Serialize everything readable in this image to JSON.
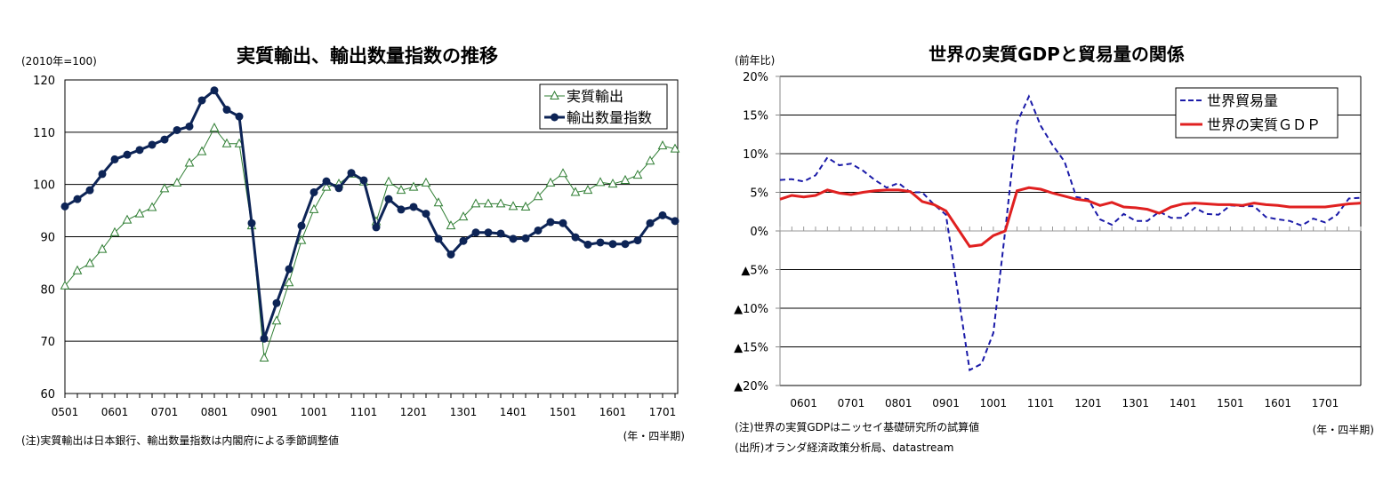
{
  "chart_data": [
    {
      "type": "line",
      "title": "実質輸出、輸出数量指数の推移",
      "unit_label": "(2010年=100)",
      "xlabel": "(年・四半期)",
      "note": "(注)実質輸出は日本銀行、輸出数量指数は内閣府による季節調整値",
      "ylim": [
        60,
        120
      ],
      "yticks": [
        "60",
        "70",
        "80",
        "90",
        "100",
        "110",
        "120"
      ],
      "xtick_labels": [
        "0501",
        "0601",
        "0701",
        "0801",
        "0901",
        "1001",
        "1101",
        "1201",
        "1301",
        "1401",
        "1501",
        "1601",
        "1701"
      ],
      "x_start": "0501",
      "x_end": "1702",
      "frequency": "quarterly",
      "grid": true,
      "legend_position": "top-right",
      "series": [
        {
          "name": "実質輸出",
          "color": "#2e7d32",
          "marker": "open-triangle",
          "values": [
            80.6,
            83.5,
            84.9,
            87.6,
            90.8,
            93.2,
            94.4,
            95.6,
            99.2,
            100.3,
            104.1,
            106.3,
            110.8,
            107.8,
            107.8,
            92.1,
            66.8,
            73.9,
            81.2,
            89.3,
            95.2,
            99.5,
            100.1,
            102.0,
            100.5,
            92.9,
            100.5,
            98.9,
            99.5,
            100.3,
            96.5,
            92.1,
            93.8,
            96.3,
            96.3,
            96.3,
            95.8,
            95.7,
            97.7,
            100.3,
            102.1,
            98.5,
            98.9,
            100.4,
            100.1,
            100.8,
            101.8,
            104.5,
            107.4,
            106.8
          ]
        },
        {
          "name": "輸出数量指数",
          "color": "#0d2456",
          "marker": "filled-circle",
          "values": [
            95.8,
            97.2,
            98.9,
            102.0,
            104.8,
            105.7,
            106.6,
            107.6,
            108.6,
            110.4,
            111.1,
            116.1,
            118.0,
            114.3,
            113.0,
            92.6,
            70.5,
            77.3,
            83.8,
            92.1,
            98.5,
            100.6,
            99.3,
            102.2,
            100.8,
            91.8,
            97.2,
            95.2,
            95.7,
            94.4,
            89.6,
            86.6,
            89.2,
            90.8,
            90.8,
            90.6,
            89.6,
            89.7,
            91.2,
            92.8,
            92.6,
            89.9,
            88.5,
            88.9,
            88.6,
            88.6,
            89.3,
            92.6,
            94.1,
            93.0
          ]
        }
      ]
    },
    {
      "type": "line",
      "title": "世界の実質GDPと貿易量の関係",
      "unit_label": "(前年比)",
      "xlabel": "(年・四半期)",
      "notes": [
        "(注)世界の実質GDPはニッセイ基礎研究所の試算値",
        "(出所)オランダ経済政策分析局、datastream"
      ],
      "ylim": [
        -20,
        20
      ],
      "yticks": [
        "▲20%",
        "▲15%",
        "▲10%",
        "▲5%",
        "0%",
        "5%",
        "10%",
        "15%",
        "20%"
      ],
      "xtick_labels": [
        "0601",
        "0701",
        "0801",
        "0901",
        "1001",
        "1101",
        "1201",
        "1301",
        "1401",
        "1501",
        "1601",
        "1701"
      ],
      "x_start": "0503",
      "x_end": "1704",
      "frequency": "quarterly",
      "grid": true,
      "legend_position": "top-right",
      "series": [
        {
          "name": "世界貿易量",
          "color": "#1a1aa8",
          "style": "dashed",
          "values": [
            6.6,
            6.7,
            6.4,
            7.2,
            9.5,
            8.5,
            8.7,
            7.8,
            6.6,
            5.6,
            6.2,
            5.0,
            5.0,
            3.4,
            2.1,
            -7.9,
            -18.0,
            -17.2,
            -13.2,
            0.0,
            14.0,
            17.4,
            13.6,
            11.1,
            9.0,
            4.4,
            4.1,
            1.5,
            0.8,
            2.2,
            1.3,
            1.3,
            2.5,
            1.7,
            1.7,
            3.0,
            2.2,
            2.1,
            3.3,
            3.2,
            3.2,
            1.8,
            1.5,
            1.3,
            0.7,
            1.6,
            1.1,
            2.1,
            4.2,
            4.3
          ]
        },
        {
          "name": "世界の実質ＧＤＰ",
          "color": "#e02020",
          "style": "solid",
          "values": [
            4.1,
            4.6,
            4.4,
            4.6,
            5.3,
            4.9,
            4.7,
            5.0,
            5.2,
            5.3,
            5.3,
            5.1,
            3.8,
            3.4,
            2.6,
            0.3,
            -2.0,
            -1.8,
            -0.6,
            0.0,
            5.2,
            5.6,
            5.4,
            4.9,
            4.5,
            4.1,
            3.9,
            3.3,
            3.7,
            3.1,
            3.0,
            2.8,
            2.3,
            3.1,
            3.5,
            3.6,
            3.5,
            3.4,
            3.4,
            3.3,
            3.6,
            3.4,
            3.3,
            3.1,
            3.1,
            3.1,
            3.1,
            3.3,
            3.5,
            3.6
          ]
        }
      ]
    }
  ]
}
